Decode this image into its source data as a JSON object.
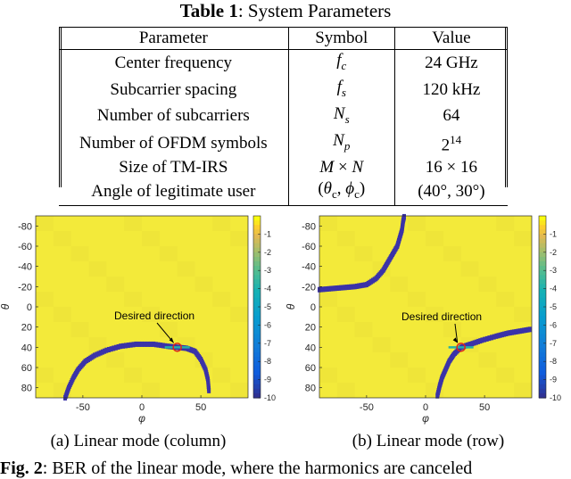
{
  "table": {
    "caption_label": "Table 1",
    "caption_text": ": System Parameters",
    "headers": [
      "Parameter",
      "Symbol",
      "Value"
    ],
    "rows": [
      {
        "parameter": "Center frequency",
        "symbol": "fc",
        "value": "24 GHz"
      },
      {
        "parameter": "Subcarrier spacing",
        "symbol": "fs",
        "value": "120 kHz"
      },
      {
        "parameter": "Number of subcarriers",
        "symbol": "Ns",
        "value": "64"
      },
      {
        "parameter": "Number of OFDM symbols",
        "symbol": "Np",
        "value": "2^14"
      },
      {
        "parameter": "Size of TM-IRS",
        "symbol": "M × N",
        "value": "16 × 16"
      },
      {
        "parameter": "Angle of legitimate user",
        "symbol": "(θc, φc)",
        "value": "(40°, 30°)"
      }
    ]
  },
  "chart_data": [
    {
      "type": "heatmap",
      "xlabel": "φ",
      "ylabel": "θ",
      "x_ticks": [
        -50,
        0,
        50
      ],
      "y_ticks": [
        -80,
        -60,
        -40,
        -20,
        0,
        20,
        40,
        60,
        80
      ],
      "xlim": [
        -90,
        90
      ],
      "ylim": [
        -90,
        90
      ],
      "colorbar_ticks": [
        -1,
        -2,
        -3,
        -4,
        -5,
        -6,
        -7,
        -8,
        -9,
        -10
      ],
      "colorbar_range": [
        -10,
        0
      ],
      "background_value": -1,
      "low_curve": [
        [
          -65,
          90
        ],
        [
          -62,
          80
        ],
        [
          -58,
          70
        ],
        [
          -54,
          62
        ],
        [
          -48,
          54
        ],
        [
          -40,
          48
        ],
        [
          -30,
          43
        ],
        [
          -18,
          39
        ],
        [
          -5,
          37
        ],
        [
          10,
          37
        ],
        [
          22,
          39
        ],
        [
          30,
          40
        ],
        [
          38,
          41
        ],
        [
          45,
          44
        ],
        [
          50,
          52
        ],
        [
          54,
          62
        ],
        [
          56,
          72
        ],
        [
          57,
          85
        ]
      ],
      "desired_point": {
        "phi": 30,
        "theta": 40
      },
      "annotation": "Desired direction",
      "caption": "(a) Linear mode (column)"
    },
    {
      "type": "heatmap",
      "xlabel": "φ",
      "ylabel": "θ",
      "x_ticks": [
        -50,
        0,
        50
      ],
      "y_ticks": [
        -80,
        -60,
        -40,
        -20,
        0,
        20,
        40,
        60,
        80
      ],
      "xlim": [
        -90,
        90
      ],
      "ylim": [
        -90,
        90
      ],
      "colorbar_ticks": [
        -1,
        -2,
        -3,
        -4,
        -5,
        -6,
        -7,
        -8,
        -9,
        -10
      ],
      "colorbar_range": [
        -10,
        0
      ],
      "background_value": -1,
      "low_curve_upper": [
        [
          -90,
          -17
        ],
        [
          -80,
          -18
        ],
        [
          -70,
          -19
        ],
        [
          -60,
          -20
        ],
        [
          -50,
          -22
        ],
        [
          -42,
          -28
        ],
        [
          -36,
          -36
        ],
        [
          -32,
          -44
        ],
        [
          -28,
          -52
        ],
        [
          -24,
          -60
        ],
        [
          -22,
          -68
        ],
        [
          -20,
          -76
        ],
        [
          -19,
          -85
        ],
        [
          -18,
          -90
        ]
      ],
      "low_curve_lower": [
        [
          10,
          88
        ],
        [
          12,
          78
        ],
        [
          14,
          70
        ],
        [
          17,
          62
        ],
        [
          20,
          54
        ],
        [
          24,
          47
        ],
        [
          30,
          40
        ],
        [
          38,
          37
        ],
        [
          48,
          33
        ],
        [
          60,
          29
        ],
        [
          70,
          26
        ],
        [
          80,
          24
        ],
        [
          90,
          22
        ]
      ],
      "desired_point": {
        "phi": 30,
        "theta": 40
      },
      "annotation": "Desired direction",
      "caption": "(b) Linear mode (row)"
    }
  ],
  "figure": {
    "label": "Fig. 2",
    "text": ": BER of the linear mode, where the harmonics are canceled"
  }
}
